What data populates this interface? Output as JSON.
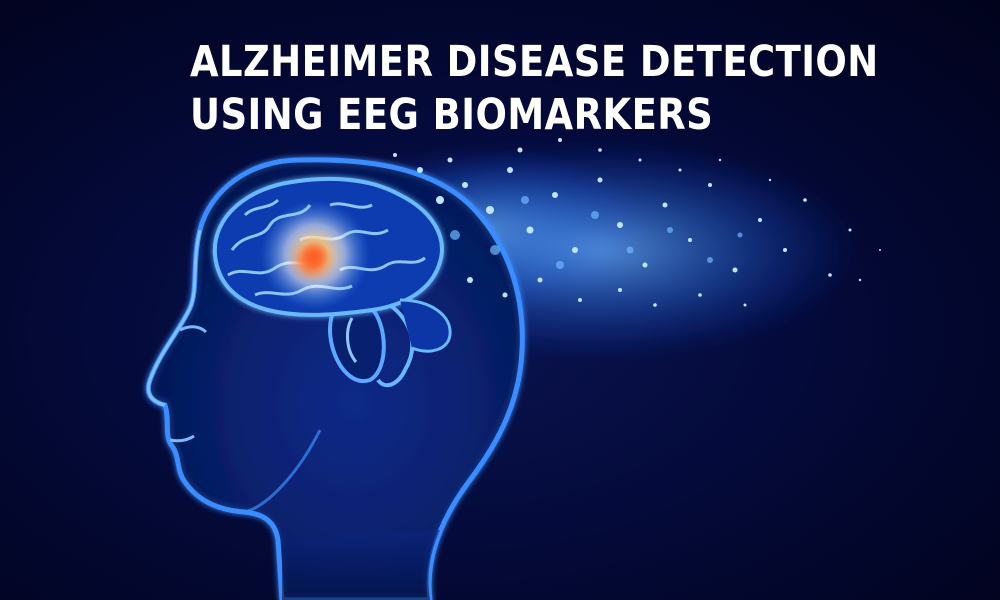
{
  "title": {
    "line1": "ALZHEIMER DISEASE DETECTION",
    "line2": "USING EEG BIOMARKERS"
  },
  "colors": {
    "background": "#02052a",
    "head_glow": "#1f6dff",
    "brain_core": "#ff6a2a",
    "particles": "#9fd4ff",
    "title_text": "#ffffff"
  }
}
